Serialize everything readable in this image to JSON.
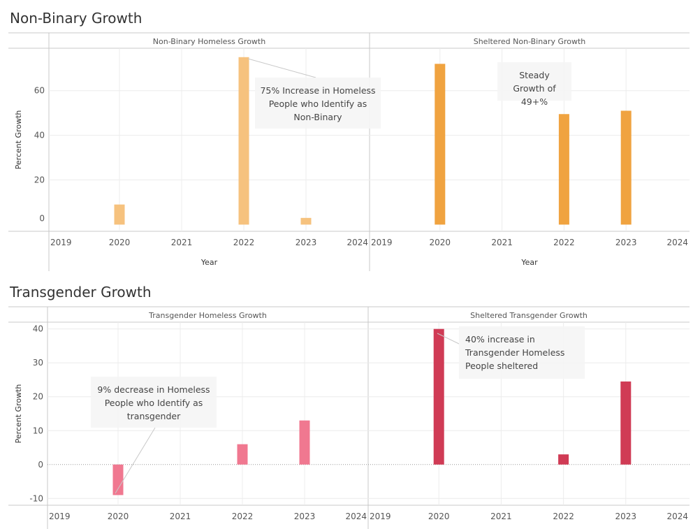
{
  "sections": [
    {
      "title": "Non-Binary Growth",
      "ylabel": "Percent Growth",
      "xlabel": "Year",
      "ylim": [
        -3,
        79
      ],
      "yticks": [
        0,
        20,
        40,
        60
      ],
      "xticks": [
        "2019",
        "2020",
        "2021",
        "2022",
        "2023",
        "2024"
      ]
    },
    {
      "title": "Transgender Growth",
      "ylabel": "Percent Growth",
      "xlabel": "",
      "ylim": [
        -12,
        42
      ],
      "yticks": [
        -10,
        0,
        10,
        20,
        30,
        40
      ],
      "xticks": [
        "2019",
        "2020",
        "2021",
        "2022",
        "2023",
        "2024"
      ]
    }
  ],
  "colors": {
    "nonbinary_homeless": "#f6c27e",
    "nonbinary_sheltered": "#f0a340",
    "transgender_homeless": "#f07890",
    "transgender_sheltered": "#d03b55"
  },
  "chart_data": [
    {
      "type": "bar",
      "title": "Non-Binary Homeless Growth",
      "xlabel": "Year",
      "ylabel": "Percent Growth",
      "categories": [
        "2020",
        "2022",
        "2023"
      ],
      "values": [
        9,
        75,
        3
      ],
      "ylim": [
        -3,
        79
      ],
      "annotations": [
        {
          "text": "75% Increase in Homeless People who Identify as Non-Binary",
          "lines": [
            "75% Increase in Homeless",
            "People who Identify as",
            "Non-Binary"
          ],
          "target": "2022"
        }
      ]
    },
    {
      "type": "bar",
      "title": "Sheltered Non-Binary Growth",
      "xlabel": "Year",
      "ylabel": "",
      "categories": [
        "2020",
        "2022",
        "2023"
      ],
      "values": [
        72,
        49.5,
        51
      ],
      "ylim": [
        -3,
        79
      ],
      "annotations": [
        {
          "text": "Steady Growth of 49+%",
          "lines": [
            "Steady",
            "Growth of",
            "49+%"
          ]
        }
      ]
    },
    {
      "type": "bar",
      "title": "Transgender Homeless Growth",
      "xlabel": "",
      "ylabel": "Percent Growth",
      "categories": [
        "2020",
        "2022",
        "2023"
      ],
      "values": [
        -9,
        6,
        13
      ],
      "ylim": [
        -12,
        42
      ],
      "annotations": [
        {
          "text": "9% decrease in Homeless People who Identify as transgender",
          "lines": [
            "9% decrease in Homeless",
            "People who Identify as",
            "transgender"
          ],
          "target": "2020"
        }
      ]
    },
    {
      "type": "bar",
      "title": "Sheltered Transgender  Growth",
      "xlabel": "",
      "ylabel": "",
      "categories": [
        "2020",
        "2022",
        "2023"
      ],
      "values": [
        40,
        3,
        24.5
      ],
      "ylim": [
        -12,
        42
      ],
      "annotations": [
        {
          "text": "40% increase in Transgender Homeless People sheltered",
          "lines": [
            "40% increase in",
            "Transgender Homeless",
            "People sheltered"
          ],
          "target": "2020"
        }
      ]
    }
  ]
}
